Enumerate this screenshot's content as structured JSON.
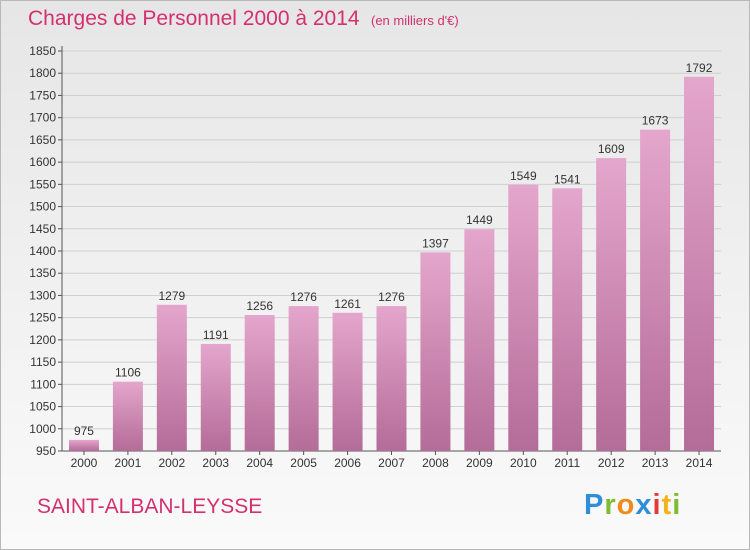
{
  "header": {
    "title": "Charges de Personnel 2000 à 2014",
    "subtitle": "(en milliers d'€)"
  },
  "footer": {
    "town": "SAINT-ALBAN-LEYSSE",
    "logo": [
      "P",
      "r",
      "o",
      "x",
      "i",
      "t",
      "i"
    ]
  },
  "colors": {
    "text_accent": "#d4306f",
    "bar_top": "#e4a6cc",
    "bar_bottom": "#b46c98"
  },
  "chart_data": {
    "type": "bar",
    "title": "Charges de Personnel 2000 à 2014",
    "subtitle": "(en milliers d'€)",
    "categories": [
      "2000",
      "2001",
      "2002",
      "2003",
      "2004",
      "2005",
      "2006",
      "2007",
      "2008",
      "2009",
      "2010",
      "2011",
      "2012",
      "2013",
      "2014"
    ],
    "values": [
      975,
      1106,
      1279,
      1191,
      1256,
      1276,
      1261,
      1276,
      1397,
      1449,
      1549,
      1541,
      1609,
      1673,
      1792
    ],
    "ylim": [
      950,
      1850
    ],
    "yticks": [
      "950",
      "1000",
      "1050",
      "1100",
      "1150",
      "1200",
      "1250",
      "1300",
      "1350",
      "1400",
      "1450",
      "1500",
      "1550",
      "1600",
      "1650",
      "1700",
      "1750",
      "1800",
      "1850"
    ],
    "grid": true,
    "xlabel": "",
    "ylabel": ""
  }
}
